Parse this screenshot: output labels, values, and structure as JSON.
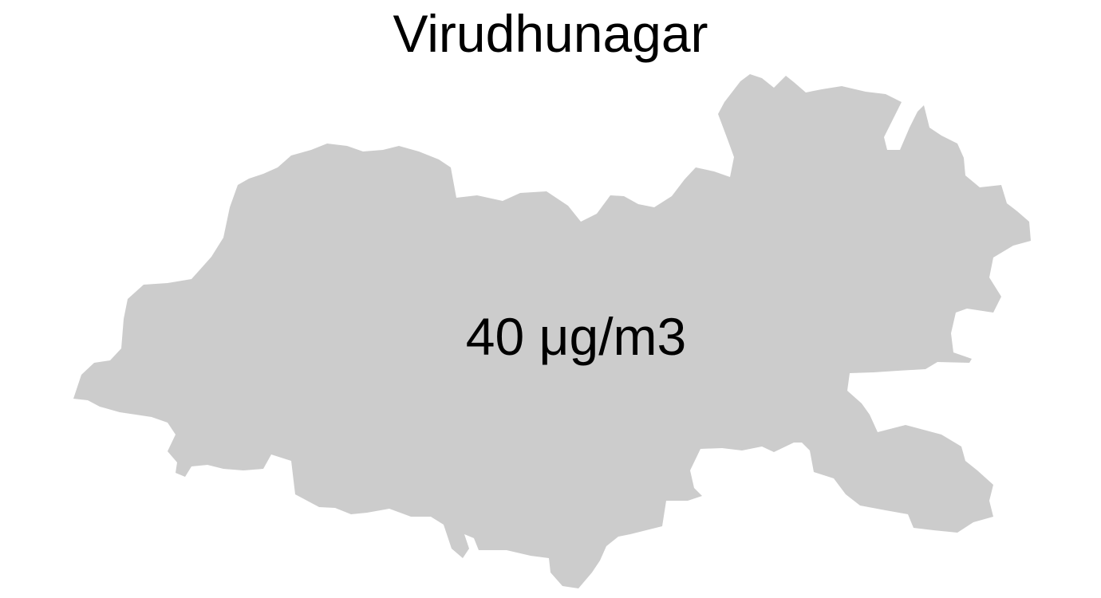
{
  "map": {
    "title": "Virudhunagar",
    "region_label": "40 μg/m3",
    "fill_color": "#cccccc",
    "label_color": "#000000"
  }
}
